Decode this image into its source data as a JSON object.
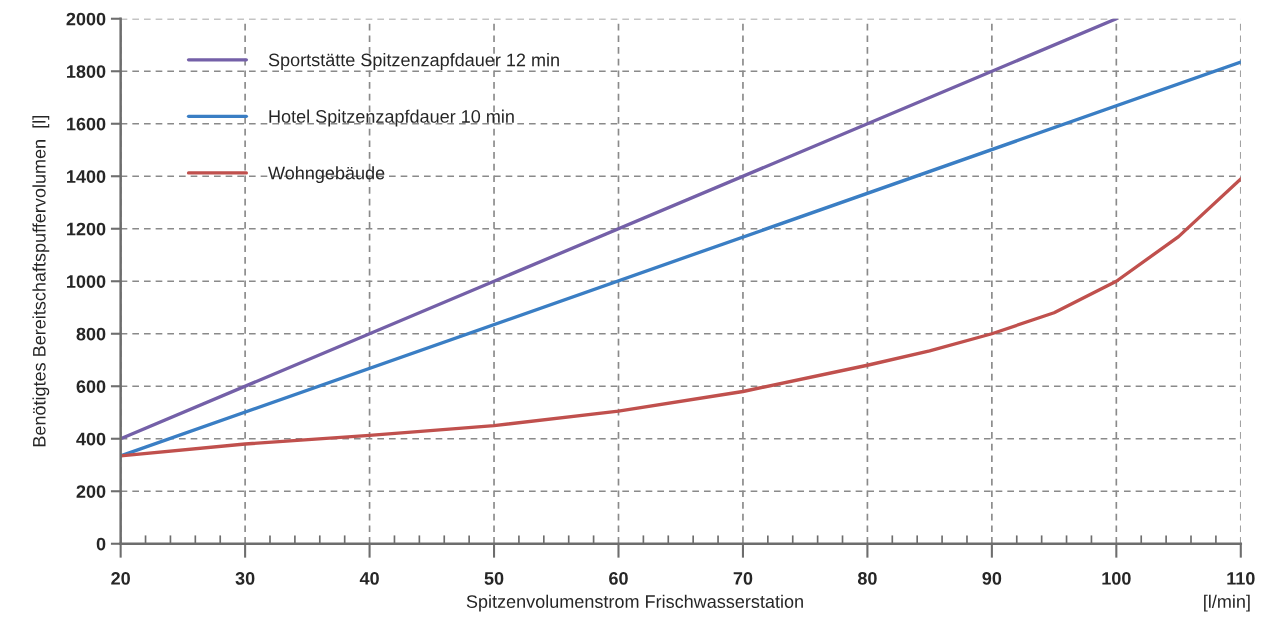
{
  "chart_data": {
    "type": "line",
    "xlabel": "Spitzenvolumenstrom Frischwasserstation",
    "ylabel": "Benötigtes Bereitschaftspuffervolumen  [l]",
    "annotations": [
      "[l/min]"
    ],
    "x": [
      20,
      30,
      40,
      50,
      60,
      70,
      80,
      85,
      90,
      95,
      100,
      105,
      110
    ],
    "series": [
      {
        "name": "Sportstätte Spitzenzapfdauer 12 min",
        "color": "#7460a8",
        "x": [
          20,
          100
        ],
        "values": [
          400,
          2000
        ]
      },
      {
        "name": "Hotel Spitzenzapfdauer 10 min",
        "color": "#3a7ec4",
        "x": [
          20,
          110
        ],
        "values": [
          335,
          1835
        ]
      },
      {
        "name": "Wohngebäude",
        "color": "#c0504d",
        "values": [
          335,
          380,
          413,
          450,
          505,
          580,
          680,
          735,
          800,
          880,
          1000,
          1170,
          1390
        ]
      }
    ],
    "xlim": [
      20,
      110
    ],
    "ylim": [
      0,
      2000
    ],
    "xticks": [
      20,
      {
        "value": 22,
        "label": null
      },
      {
        "value": 24,
        "label": null
      },
      {
        "value": 26,
        "label": null
      },
      {
        "value": 28,
        "label": null
      },
      30,
      {
        "value": 32,
        "label": null
      },
      {
        "value": 34,
        "label": null
      },
      {
        "value": 36,
        "label": null
      },
      {
        "value": 38,
        "label": null
      },
      40,
      {
        "value": 42,
        "label": null
      },
      {
        "value": 44,
        "label": null
      },
      {
        "value": 46,
        "label": null
      },
      {
        "value": 48,
        "label": null
      },
      50,
      {
        "value": 52,
        "label": null
      },
      {
        "value": 54,
        "label": null
      },
      {
        "value": 56,
        "label": null
      },
      {
        "value": 58,
        "label": null
      },
      60,
      {
        "value": 62,
        "label": null
      },
      {
        "value": 64,
        "label": null
      },
      {
        "value": 66,
        "label": null
      },
      {
        "value": 68,
        "label": null
      },
      70,
      {
        "value": 72,
        "label": null
      },
      {
        "value": 74,
        "label": null
      },
      {
        "value": 76,
        "label": null
      },
      {
        "value": 78,
        "label": null
      },
      80,
      {
        "value": 82,
        "label": null
      },
      {
        "value": 84,
        "label": null
      },
      {
        "value": 86,
        "label": null
      },
      {
        "value": 88,
        "label": null
      },
      90,
      {
        "value": 92,
        "label": null
      },
      {
        "value": 94,
        "label": null
      },
      {
        "value": 96,
        "label": null
      },
      {
        "value": 98,
        "label": null
      },
      100,
      {
        "value": 102,
        "label": null
      },
      {
        "value": 104,
        "label": null
      },
      {
        "value": 106,
        "label": null
      },
      {
        "value": 108,
        "label": null
      },
      110
    ],
    "yticks": [
      0,
      200,
      400,
      600,
      800,
      1000,
      1200,
      1400,
      1600,
      1800,
      2000
    ],
    "grid": true,
    "legend": "top left",
    "marker": "none",
    "line_style": "solid"
  }
}
